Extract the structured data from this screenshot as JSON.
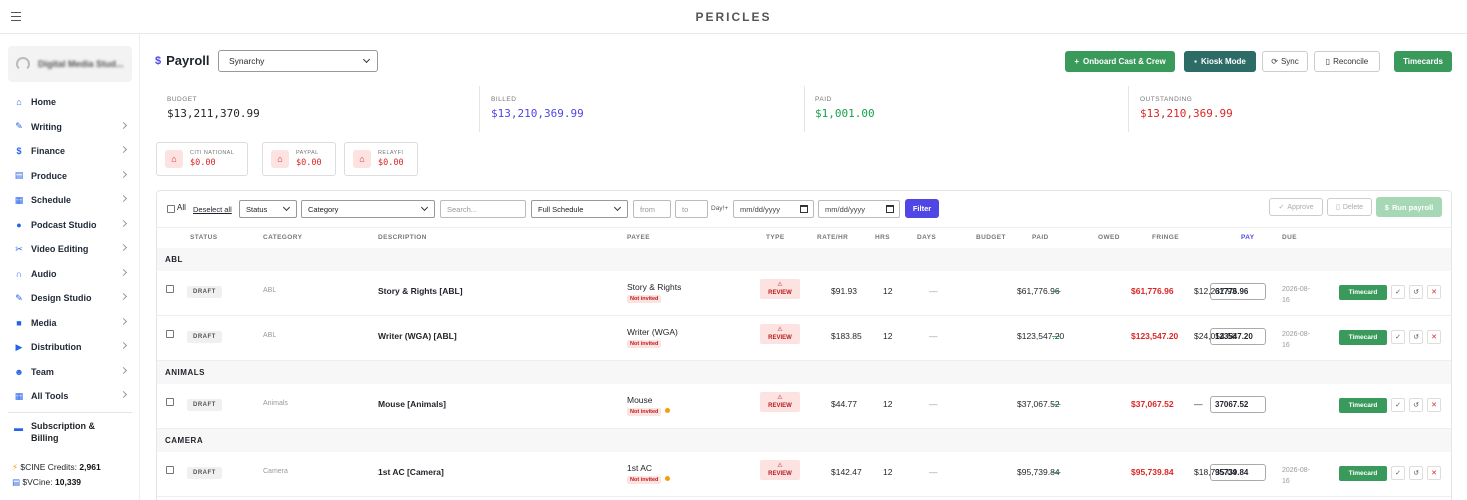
{
  "app": {
    "title": "PERICLES"
  },
  "sidebar": {
    "org_name": "Digital Media Stud...",
    "items": [
      {
        "label": "Home",
        "icon": "home-icon"
      },
      {
        "label": "Writing",
        "icon": "pen-icon"
      },
      {
        "label": "Finance",
        "icon": "dollar-icon"
      },
      {
        "label": "Produce",
        "icon": "film-icon"
      },
      {
        "label": "Schedule",
        "icon": "calendar-icon"
      },
      {
        "label": "Podcast Studio",
        "icon": "microphone-icon"
      },
      {
        "label": "Video Editing",
        "icon": "scissors-icon"
      },
      {
        "label": "Audio",
        "icon": "headphones-icon"
      },
      {
        "label": "Design Studio",
        "icon": "brush-icon"
      },
      {
        "label": "Media",
        "icon": "folder-icon"
      },
      {
        "label": "Distribution",
        "icon": "truck-icon"
      },
      {
        "label": "Team",
        "icon": "users-icon"
      },
      {
        "label": "All Tools",
        "icon": "grid-icon"
      }
    ],
    "subscription": "Subscription & Billing",
    "credits": {
      "cine_label": "$CINE Credits:",
      "cine_value": "2,961",
      "vcine_label": "$VCine:",
      "vcine_value": "10,339"
    }
  },
  "header": {
    "title": "Payroll",
    "project": "Synarchy",
    "buttons": {
      "onboard": "Onboard Cast & Crew",
      "kiosk": "Kiosk Mode",
      "sync": "Sync",
      "reconcile": "Reconcile",
      "timecards": "Timecards"
    }
  },
  "stats": {
    "budget_label": "BUDGET",
    "budget": "$13,211,370.99",
    "billed_label": "BILLED",
    "billed": "$13,210,369.99",
    "paid_label": "PAID",
    "paid": "$1,001.00",
    "outstanding_label": "OUTSTANDING",
    "outstanding": "$13,210,369.99"
  },
  "accounts": [
    {
      "name": "CITI NATIONAL",
      "value": "$0.00"
    },
    {
      "name": "PAYPAL",
      "value": "$0.00"
    },
    {
      "name": "RELAYFI",
      "value": "$0.00"
    }
  ],
  "filters": {
    "all": "All",
    "deselect": "Deselect all",
    "status": "Status",
    "category": "Category",
    "search_placeholder": "Search...",
    "schedule": "Full Schedule",
    "from": "from",
    "to": "to",
    "day_label": "Day!+",
    "date_placeholder": "mm/dd/yyyy",
    "filter_btn": "Filter",
    "approve": "Approve",
    "delete": "Delete",
    "run_payroll": "Run payroll"
  },
  "columns": {
    "status": "STATUS",
    "category": "CATEGORY",
    "description": "DESCRIPTION",
    "payee": "PAYEE",
    "type": "TYPE",
    "rate": "RATE/HR",
    "hrs": "HRS",
    "days": "DAYS",
    "budget": "BUDGET",
    "paid": "PAID",
    "owed": "OWED",
    "fringe": "FRINGE",
    "pay": "PAY",
    "due": "DUE"
  },
  "groups": [
    "ABL",
    "ANIMALS",
    "CAMERA"
  ],
  "rows": [
    {
      "status": "DRAFT",
      "category": "ABL",
      "description": "Story & Rights [ABL]",
      "payee": "Story & Rights",
      "invite": "Not invited",
      "type": "REVIEW",
      "rate": "$91.93",
      "hrs": "12",
      "days": "—",
      "budget": "$61,776.96",
      "paid": "—",
      "owed": "$61,776.96",
      "fringe": "$12,237.93",
      "pay": "61776.96",
      "due": "2026-08-16",
      "tc": "Timecard"
    },
    {
      "status": "DRAFT",
      "category": "ABL",
      "description": "Writer (WGA) [ABL]",
      "payee": "Writer (WGA)",
      "invite": "Not invited",
      "type": "REVIEW",
      "rate": "$183.85",
      "hrs": "12",
      "days": "—",
      "budget": "$123,547.20",
      "paid": "—",
      "owed": "$123,547.20",
      "fringe": "$24,054.58",
      "pay": "123547.20",
      "due": "2026-08-16",
      "tc": "Timecard"
    },
    {
      "status": "DRAFT",
      "category": "Animals",
      "description": "Mouse [Animals]",
      "payee": "Mouse",
      "invite": "Not invited",
      "type": "REVIEW",
      "rate": "$44.77",
      "hrs": "12",
      "days": "—",
      "budget": "$37,067.52",
      "paid": "—",
      "owed": "$37,067.52",
      "fringe": "—",
      "pay": "37067.52",
      "due": "",
      "tc": "Timecard"
    },
    {
      "status": "DRAFT",
      "category": "Camera",
      "description": "1st AC [Camera]",
      "payee": "1st AC",
      "invite": "Not invited",
      "type": "REVIEW",
      "rate": "$142.47",
      "hrs": "12",
      "days": "—",
      "budget": "$95,739.84",
      "paid": "—",
      "owed": "$95,739.84",
      "fringe": "$18,735.04",
      "pay": "95739.84",
      "due": "2026-08-16",
      "tc": "Timecard"
    }
  ]
}
